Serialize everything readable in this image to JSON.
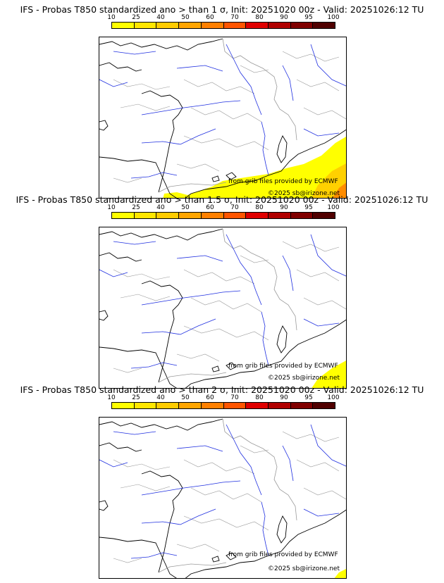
{
  "colorbar": {
    "labels": [
      "10",
      "25",
      "40",
      "50",
      "60",
      "70",
      "80",
      "90",
      "95",
      "100"
    ],
    "colors": [
      "#ffff00",
      "#ffe600",
      "#ffcc00",
      "#ffa500",
      "#ff8000",
      "#ff5500",
      "#e00000",
      "#b00000",
      "#800000",
      "#500000"
    ]
  },
  "panels": [
    {
      "title": "IFS - Probas T850  standardized ano > than 1 σ, Init: 20251020 00z - Valid: 20251026:12 TU",
      "credit_source": "from grib files provided by ECMWF",
      "credit_copyright": "©2025 sb@irizone.net"
    },
    {
      "title": "IFS - Probas T850  standardized ano > than 1.5 σ, Init: 20251020 00z - Valid: 20251026:12 TU",
      "credit_source": "from grib files provided by ECMWF",
      "credit_copyright": "©2025 sb@irizone.net"
    },
    {
      "title": "IFS - Probas T850  standardized ano > than 2 σ, Init: 20251020 00z - Valid: 20251026:12 TU",
      "credit_source": "from grib files provided by ECMWF",
      "credit_copyright": "©2025 sb@irizone.net"
    }
  ],
  "colors": {
    "coast": "#000000",
    "borders": "#9a9a9a",
    "rivers": "#1f2fe0",
    "prob_low": "#ffff00",
    "prob_mid": "#ffd000",
    "prob_high": "#ff8c00"
  }
}
